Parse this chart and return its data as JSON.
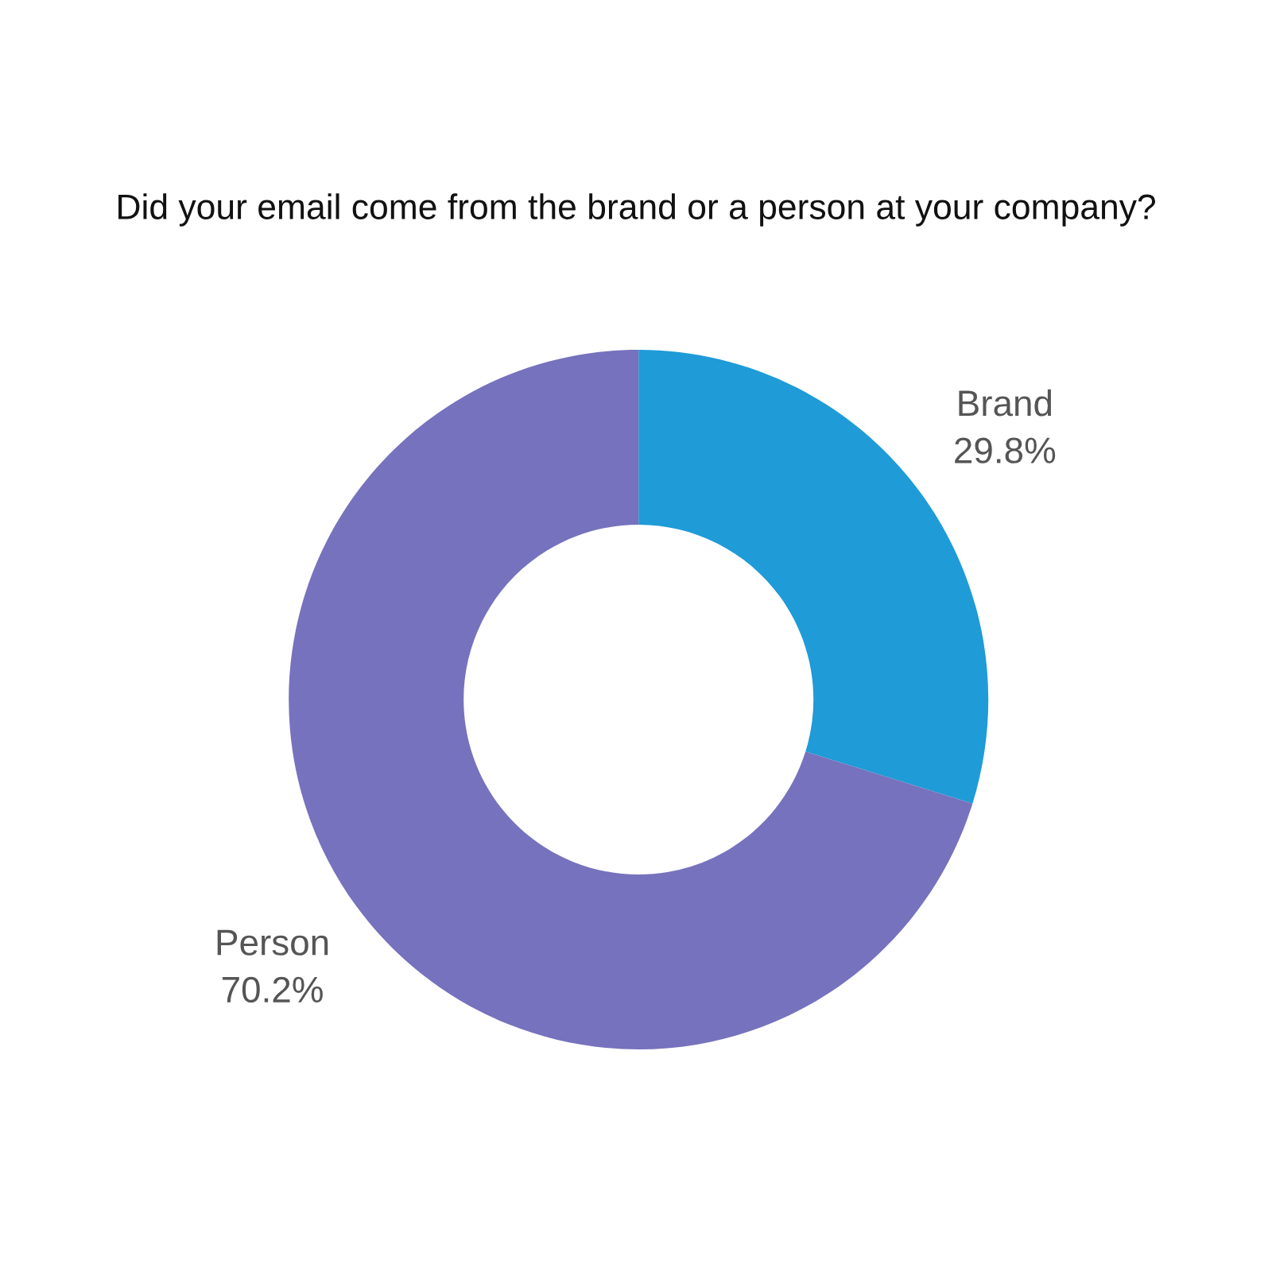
{
  "chart_data": {
    "type": "donut",
    "title": "Did your email come from the brand or a person at your company?",
    "categories": [
      "Brand",
      "Person"
    ],
    "values": [
      29.8,
      70.2
    ],
    "colors": [
      "#1f9bd7",
      "#7672bd"
    ],
    "value_labels": [
      "29.8%",
      "70.2%"
    ],
    "legend": false
  }
}
